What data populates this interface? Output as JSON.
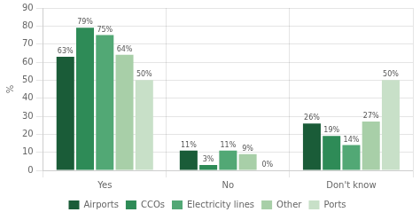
{
  "chart_data": {
    "type": "bar",
    "categories": [
      "Yes",
      "No",
      "Don't know"
    ],
    "series": [
      {
        "name": "Airports",
        "color": "#1a5c38",
        "values": [
          63,
          11,
          26
        ],
        "value_labels": [
          "63%",
          "11%",
          "26%"
        ]
      },
      {
        "name": "CCOs",
        "color": "#2e8b57",
        "values": [
          79,
          3,
          19
        ],
        "value_labels": [
          "79%",
          "3%",
          "19%"
        ]
      },
      {
        "name": "Electricity lines",
        "color": "#52a875",
        "values": [
          75,
          11,
          14
        ],
        "value_labels": [
          "75%",
          "11%",
          "14%"
        ]
      },
      {
        "name": "Other",
        "color": "#a8cfa8",
        "values": [
          64,
          9,
          27
        ],
        "value_labels": [
          "64%",
          "9%",
          "27%"
        ]
      },
      {
        "name": "Ports",
        "color": "#c8e0c8",
        "values": [
          50,
          0,
          50
        ],
        "value_labels": [
          "50%",
          "0%",
          "50%"
        ]
      }
    ],
    "ylabel": "%",
    "ylim": [
      0,
      90
    ],
    "yticks": [
      0,
      10,
      20,
      30,
      40,
      50,
      60,
      70,
      80,
      90
    ],
    "grid": true,
    "legend": "bottom",
    "data_labels": true
  }
}
